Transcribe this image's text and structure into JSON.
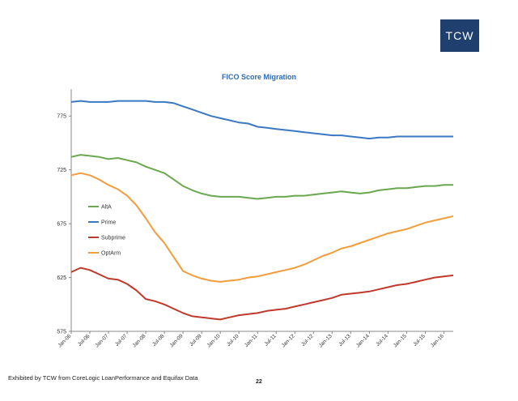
{
  "logo": {
    "text": "TCW",
    "bg": "#1f3f6e"
  },
  "footnote": "Exhibited by TCW from CoreLogic LoanPerformance and Equifax Data",
  "page_number": "22",
  "chart_data": {
    "type": "line",
    "title": "FICO Score Migration",
    "xlabel": "",
    "ylabel": "",
    "ylim": [
      575,
      800
    ],
    "xlim": [
      "2006-01",
      "2016-04"
    ],
    "y_ticks": [
      575,
      625,
      675,
      725,
      775
    ],
    "x_ticks": [
      "Jan-06",
      "Jul-06",
      "Jan-07",
      "Jul-07",
      "Jan-08",
      "Jul-08",
      "Jan-09",
      "Jul-09",
      "Jan-10",
      "Jul-10",
      "Jan-11",
      "Jul-11",
      "Jan-12",
      "Jul-12",
      "Jan-13",
      "Jul-13",
      "Jan-14",
      "Jul-14",
      "Jan-15",
      "Jul-15",
      "Jan-16"
    ],
    "grid": false,
    "legend_position": "left-middle",
    "series": [
      {
        "name": "AltA",
        "color": "#6aa84f",
        "points": [
          [
            "2006-01",
            737
          ],
          [
            "2006-04",
            739
          ],
          [
            "2006-07",
            738
          ],
          [
            "2006-10",
            737
          ],
          [
            "2007-01",
            735
          ],
          [
            "2007-04",
            736
          ],
          [
            "2007-07",
            734
          ],
          [
            "2007-10",
            732
          ],
          [
            "2008-01",
            728
          ],
          [
            "2008-04",
            725
          ],
          [
            "2008-07",
            722
          ],
          [
            "2008-10",
            716
          ],
          [
            "2009-01",
            710
          ],
          [
            "2009-04",
            706
          ],
          [
            "2009-07",
            703
          ],
          [
            "2009-10",
            701
          ],
          [
            "2010-01",
            700
          ],
          [
            "2010-04",
            700
          ],
          [
            "2010-07",
            700
          ],
          [
            "2010-10",
            699
          ],
          [
            "2011-01",
            698
          ],
          [
            "2011-04",
            699
          ],
          [
            "2011-07",
            700
          ],
          [
            "2011-10",
            700
          ],
          [
            "2012-01",
            701
          ],
          [
            "2012-04",
            701
          ],
          [
            "2012-07",
            702
          ],
          [
            "2012-10",
            703
          ],
          [
            "2013-01",
            704
          ],
          [
            "2013-04",
            705
          ],
          [
            "2013-07",
            704
          ],
          [
            "2013-10",
            703
          ],
          [
            "2014-01",
            704
          ],
          [
            "2014-04",
            706
          ],
          [
            "2014-07",
            707
          ],
          [
            "2014-10",
            708
          ],
          [
            "2015-01",
            708
          ],
          [
            "2015-04",
            709
          ],
          [
            "2015-07",
            710
          ],
          [
            "2015-10",
            710
          ],
          [
            "2016-01",
            711
          ],
          [
            "2016-04",
            711
          ]
        ]
      },
      {
        "name": "Prime",
        "color": "#3b78c3",
        "points": [
          [
            "2006-01",
            788
          ],
          [
            "2006-04",
            789
          ],
          [
            "2006-07",
            788
          ],
          [
            "2006-10",
            788
          ],
          [
            "2007-01",
            788
          ],
          [
            "2007-04",
            789
          ],
          [
            "2007-07",
            789
          ],
          [
            "2007-10",
            789
          ],
          [
            "2008-01",
            789
          ],
          [
            "2008-04",
            788
          ],
          [
            "2008-07",
            788
          ],
          [
            "2008-10",
            787
          ],
          [
            "2009-01",
            784
          ],
          [
            "2009-04",
            781
          ],
          [
            "2009-07",
            778
          ],
          [
            "2009-10",
            775
          ],
          [
            "2010-01",
            773
          ],
          [
            "2010-04",
            771
          ],
          [
            "2010-07",
            769
          ],
          [
            "2010-10",
            768
          ],
          [
            "2011-01",
            765
          ],
          [
            "2011-04",
            764
          ],
          [
            "2011-07",
            763
          ],
          [
            "2011-10",
            762
          ],
          [
            "2012-01",
            761
          ],
          [
            "2012-04",
            760
          ],
          [
            "2012-07",
            759
          ],
          [
            "2012-10",
            758
          ],
          [
            "2013-01",
            757
          ],
          [
            "2013-04",
            757
          ],
          [
            "2013-07",
            756
          ],
          [
            "2013-10",
            755
          ],
          [
            "2014-01",
            754
          ],
          [
            "2014-04",
            755
          ],
          [
            "2014-07",
            755
          ],
          [
            "2014-10",
            756
          ],
          [
            "2015-01",
            756
          ],
          [
            "2015-04",
            756
          ],
          [
            "2015-07",
            756
          ],
          [
            "2015-10",
            756
          ],
          [
            "2016-01",
            756
          ],
          [
            "2016-04",
            756
          ]
        ]
      },
      {
        "name": "Subprime",
        "color": "#c0392b",
        "points": [
          [
            "2006-01",
            630
          ],
          [
            "2006-04",
            634
          ],
          [
            "2006-07",
            632
          ],
          [
            "2006-10",
            628
          ],
          [
            "2007-01",
            624
          ],
          [
            "2007-04",
            623
          ],
          [
            "2007-07",
            619
          ],
          [
            "2007-10",
            613
          ],
          [
            "2008-01",
            605
          ],
          [
            "2008-04",
            603
          ],
          [
            "2008-07",
            600
          ],
          [
            "2008-10",
            596
          ],
          [
            "2009-01",
            592
          ],
          [
            "2009-04",
            589
          ],
          [
            "2009-07",
            588
          ],
          [
            "2009-10",
            587
          ],
          [
            "2010-01",
            586
          ],
          [
            "2010-04",
            588
          ],
          [
            "2010-07",
            590
          ],
          [
            "2010-10",
            591
          ],
          [
            "2011-01",
            592
          ],
          [
            "2011-04",
            594
          ],
          [
            "2011-07",
            595
          ],
          [
            "2011-10",
            596
          ],
          [
            "2012-01",
            598
          ],
          [
            "2012-04",
            600
          ],
          [
            "2012-07",
            602
          ],
          [
            "2012-10",
            604
          ],
          [
            "2013-01",
            606
          ],
          [
            "2013-04",
            609
          ],
          [
            "2013-07",
            610
          ],
          [
            "2013-10",
            611
          ],
          [
            "2014-01",
            612
          ],
          [
            "2014-04",
            614
          ],
          [
            "2014-07",
            616
          ],
          [
            "2014-10",
            618
          ],
          [
            "2015-01",
            619
          ],
          [
            "2015-04",
            621
          ],
          [
            "2015-07",
            623
          ],
          [
            "2015-10",
            625
          ],
          [
            "2016-01",
            626
          ],
          [
            "2016-04",
            627
          ]
        ]
      },
      {
        "name": "OptArm",
        "color": "#f39c3b",
        "points": [
          [
            "2006-01",
            720
          ],
          [
            "2006-04",
            722
          ],
          [
            "2006-07",
            720
          ],
          [
            "2006-10",
            716
          ],
          [
            "2007-01",
            711
          ],
          [
            "2007-04",
            707
          ],
          [
            "2007-07",
            701
          ],
          [
            "2007-10",
            692
          ],
          [
            "2008-01",
            680
          ],
          [
            "2008-04",
            667
          ],
          [
            "2008-07",
            657
          ],
          [
            "2008-10",
            644
          ],
          [
            "2009-01",
            631
          ],
          [
            "2009-04",
            627
          ],
          [
            "2009-07",
            624
          ],
          [
            "2009-10",
            622
          ],
          [
            "2010-01",
            621
          ],
          [
            "2010-04",
            622
          ],
          [
            "2010-07",
            623
          ],
          [
            "2010-10",
            625
          ],
          [
            "2011-01",
            626
          ],
          [
            "2011-04",
            628
          ],
          [
            "2011-07",
            630
          ],
          [
            "2011-10",
            632
          ],
          [
            "2012-01",
            634
          ],
          [
            "2012-04",
            637
          ],
          [
            "2012-07",
            641
          ],
          [
            "2012-10",
            645
          ],
          [
            "2013-01",
            648
          ],
          [
            "2013-04",
            652
          ],
          [
            "2013-07",
            654
          ],
          [
            "2013-10",
            657
          ],
          [
            "2014-01",
            660
          ],
          [
            "2014-04",
            663
          ],
          [
            "2014-07",
            666
          ],
          [
            "2014-10",
            668
          ],
          [
            "2015-01",
            670
          ],
          [
            "2015-04",
            673
          ],
          [
            "2015-07",
            676
          ],
          [
            "2015-10",
            678
          ],
          [
            "2016-01",
            680
          ],
          [
            "2016-04",
            682
          ]
        ]
      }
    ]
  }
}
